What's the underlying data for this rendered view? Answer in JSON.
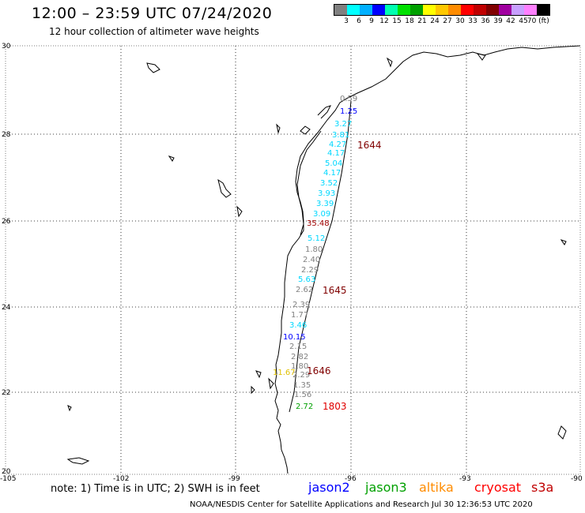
{
  "title": "12:00 – 23:59 UTC 07/24/2020",
  "subtitle": "12 hour collection of altimeter wave heights",
  "legend": {
    "colors": [
      "#808080",
      "#00ffff",
      "#00b0ff",
      "#0000ff",
      "#00ffb0",
      "#00e000",
      "#00a000",
      "#ffff00",
      "#ffc800",
      "#ff8c00",
      "#ff0000",
      "#c00000",
      "#800000",
      "#a000a0",
      "#c8a0ff",
      "#ff80ff",
      "#000000"
    ],
    "labels": [
      "3",
      "6",
      "9",
      "12",
      "15",
      "18",
      "21",
      "24",
      "27",
      "30",
      "33",
      "36",
      "39",
      "42",
      "45",
      "70 (ft)"
    ]
  },
  "axes": {
    "lat_labels": [
      "30",
      "28",
      "26",
      "24",
      "22",
      "20"
    ],
    "lon_labels": [
      "-105",
      "-102",
      "-99",
      "-96",
      "-93",
      "-90"
    ]
  },
  "track_labels": [
    "1644",
    "1645",
    "1646",
    "1803"
  ],
  "wave_heights": [
    {
      "v": "0.59",
      "c": "#808080"
    },
    {
      "v": "1.25",
      "c": "#0000ff"
    },
    {
      "v": "3.27",
      "c": "#00d8ff"
    },
    {
      "v": "3.81",
      "c": "#00d8ff"
    },
    {
      "v": "4.27",
      "c": "#00d8ff"
    },
    {
      "v": "4.17",
      "c": "#00d8ff"
    },
    {
      "v": "5.04",
      "c": "#00d8ff"
    },
    {
      "v": "4.17",
      "c": "#00d8ff"
    },
    {
      "v": "3.52",
      "c": "#00d8ff"
    },
    {
      "v": "3.93",
      "c": "#00d8ff"
    },
    {
      "v": "3.39",
      "c": "#00d8ff"
    },
    {
      "v": "3.09",
      "c": "#00d8ff"
    },
    {
      "v": "35.48",
      "c": "#a00000"
    },
    {
      "v": "5.12",
      "c": "#00d8ff"
    },
    {
      "v": "1.80",
      "c": "#808080"
    },
    {
      "v": "2.40",
      "c": "#808080"
    },
    {
      "v": "2.29",
      "c": "#808080"
    },
    {
      "v": "5.63",
      "c": "#00d8ff"
    },
    {
      "v": "2.62",
      "c": "#808080"
    },
    {
      "v": "2.39",
      "c": "#808080"
    },
    {
      "v": "1.77",
      "c": "#808080"
    },
    {
      "v": "3.46",
      "c": "#00d8ff"
    },
    {
      "v": "10.15",
      "c": "#0000ff"
    },
    {
      "v": "2.15",
      "c": "#808080"
    },
    {
      "v": "2.82",
      "c": "#808080"
    },
    {
      "v": "1.80",
      "c": "#808080"
    },
    {
      "v": "2.29",
      "c": "#808080"
    },
    {
      "v": "1.35",
      "c": "#808080"
    },
    {
      "v": "1.56",
      "c": "#808080"
    },
    {
      "v": "11.67",
      "c": "#e0c000"
    },
    {
      "v": "2.72",
      "c": "#00a000"
    }
  ],
  "note": "note: 1) Time is in UTC; 2) SWH is in feet",
  "satellites": [
    {
      "name": "jason2",
      "color": "#0000ff"
    },
    {
      "name": "jason3",
      "color": "#00a000"
    },
    {
      "name": "altika",
      "color": "#ff8c00"
    },
    {
      "name": "cryosat",
      "color": "#ff0000"
    },
    {
      "name": "s3a",
      "color": "#c00000"
    }
  ],
  "footer": "NOAA/NESDIS Center for Satellite Applications and Research    Jul 30 12:36:53 UTC 2020"
}
